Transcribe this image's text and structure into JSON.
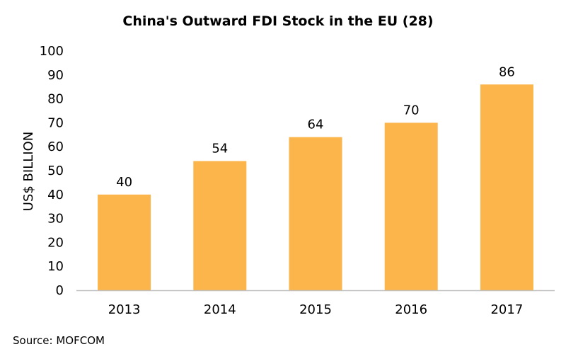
{
  "chart_data": {
    "type": "bar",
    "title": "China's Outward FDI Stock in the EU (28)",
    "ylabel": "US$ BILLION",
    "xlabel": "",
    "categories": [
      "2013",
      "2014",
      "2015",
      "2016",
      "2017"
    ],
    "values": [
      40,
      54,
      64,
      70,
      86
    ],
    "data_labels": [
      "40",
      "54",
      "64",
      "70",
      "86"
    ],
    "ylim": [
      0,
      100
    ],
    "yticks": [
      0,
      10,
      20,
      30,
      40,
      50,
      60,
      70,
      80,
      90,
      100
    ],
    "grid": false,
    "legend": "none",
    "bar_color": "#FBB54A",
    "axis_color": "#BFBFBF"
  },
  "source": "Source: MOFCOM"
}
